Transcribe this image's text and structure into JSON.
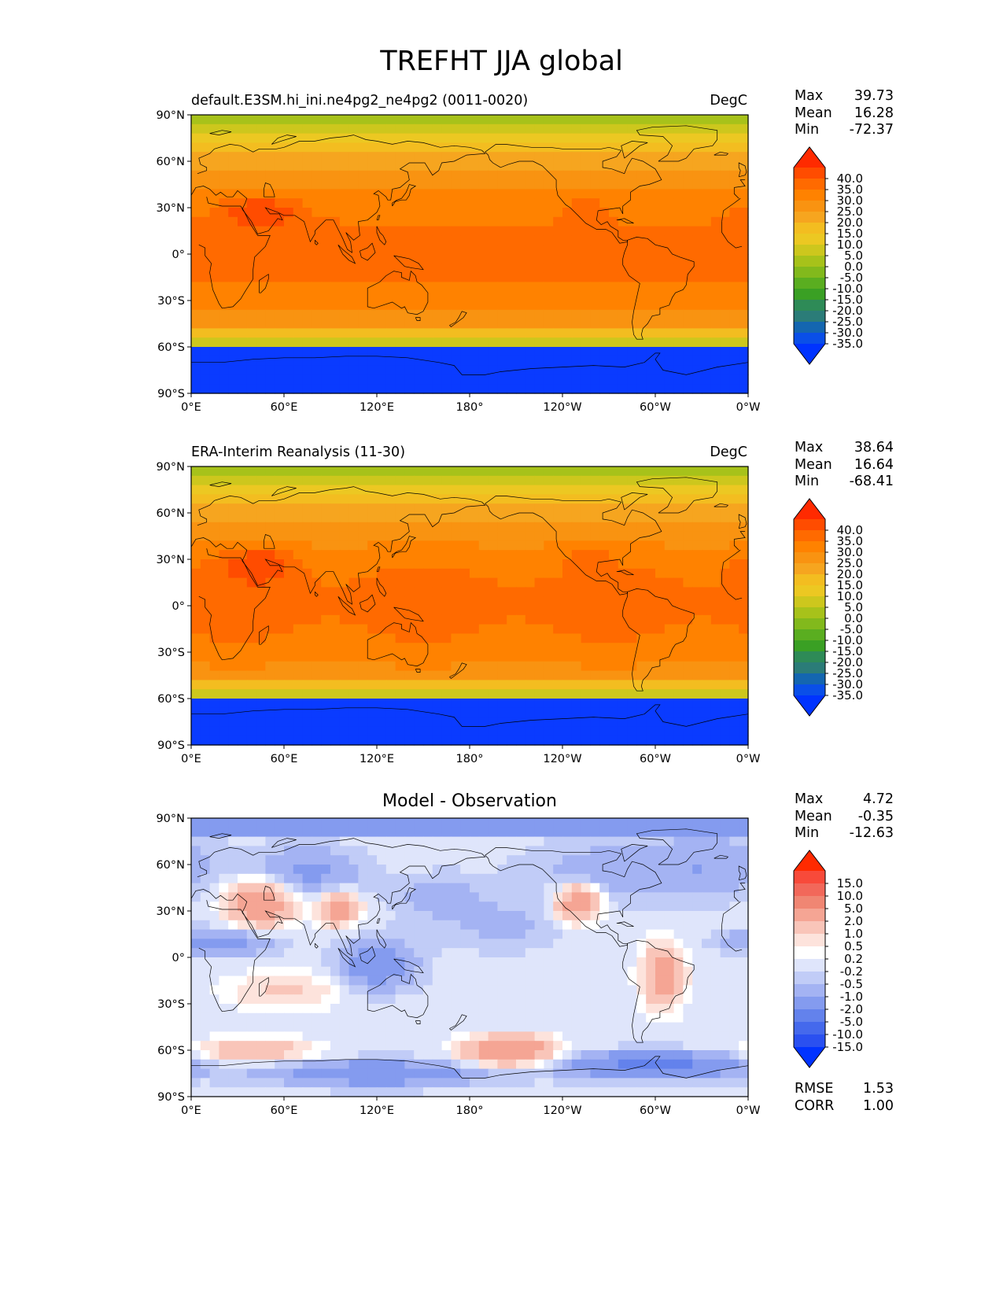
{
  "figure": {
    "title": "TREFHT JJA global",
    "panels": [
      {
        "title": "default.E3SM.hi_ini.ne4pg2_ne4pg2 (0011-0020)",
        "units": "DegC",
        "stats": [
          {
            "label": "Max",
            "value": "39.73"
          },
          {
            "label": "Mean",
            "value": "16.28"
          },
          {
            "label": "Min",
            "value": "-72.37"
          }
        ],
        "colorbar": "abs"
      },
      {
        "title": "ERA-Interim Reanalysis (11-30)",
        "units": "DegC",
        "stats": [
          {
            "label": "Max",
            "value": "38.64"
          },
          {
            "label": "Mean",
            "value": "16.64"
          },
          {
            "label": "Min",
            "value": "-68.41"
          }
        ],
        "colorbar": "abs"
      },
      {
        "title": "Model - Observation",
        "units": "",
        "stats": [
          {
            "label": "Max",
            "value": "4.72"
          },
          {
            "label": "Mean",
            "value": "-0.35"
          },
          {
            "label": "Min",
            "value": "-12.63"
          }
        ],
        "extra_stats": [
          {
            "label": "RMSE",
            "value": "1.53"
          },
          {
            "label": "CORR",
            "value": "1.00"
          }
        ],
        "colorbar": "diff"
      }
    ],
    "axes": {
      "lat_ticks": [
        "90°N",
        "60°N",
        "30°N",
        "0°",
        "30°S",
        "60°S",
        "90°S"
      ],
      "lon_ticks": [
        "0°E",
        "60°E",
        "120°E",
        "180°",
        "120°W",
        "60°W",
        "0°W"
      ]
    },
    "colorbars": {
      "abs": {
        "labels": [
          "40.0",
          "35.0",
          "30.0",
          "25.0",
          "20.0",
          "15.0",
          "10.0",
          "5.0",
          "0.0",
          "-5.0",
          "-10.0",
          "-15.0",
          "-20.0",
          "-25.0",
          "-30.0",
          "-35.0"
        ],
        "colors": [
          "#ff2a00",
          "#ff4c00",
          "#ff6a00",
          "#ff8200",
          "#f99311",
          "#f6a51f",
          "#f3bd20",
          "#ecc822",
          "#cdc71d",
          "#a7c21a",
          "#82b91c",
          "#5aae20",
          "#3aa024",
          "#2e8b57",
          "#2b7c78",
          "#1466b0",
          "#0a4fe8",
          "#0033ff"
        ]
      },
      "diff": {
        "labels": [
          "15.0",
          "10.0",
          "5.0",
          "2.0",
          "1.0",
          "0.5",
          "0.2",
          "-0.2",
          "-0.5",
          "-1.0",
          "-2.0",
          "-5.0",
          "-10.0",
          "-15.0"
        ],
        "colors": [
          "#ff2a00",
          "#f84a3a",
          "#f2685a",
          "#f08673",
          "#f5a594",
          "#f9c5b9",
          "#fde3dc",
          "#ffffff",
          "#dfe5fb",
          "#c1ccf7",
          "#a4b3f3",
          "#849bef",
          "#6382ec",
          "#4569ec",
          "#2a50f0",
          "#0033ff"
        ]
      }
    },
    "field_palettes": {
      "abs": [
        "#0a3bff",
        "#1466b0",
        "#2e8b57",
        "#3aa024",
        "#5aae20",
        "#82b91c",
        "#a7c21a",
        "#cdc71d",
        "#ecc822",
        "#f3bd20",
        "#f6a51f",
        "#f99311",
        "#ff8200",
        "#ff6a00",
        "#ff4c00"
      ],
      "diff": [
        "#2a50f0",
        "#6382ec",
        "#849bef",
        "#a4b3f3",
        "#c1ccf7",
        "#dfe5fb",
        "#ffffff",
        "#fde3dc",
        "#f9c5b9",
        "#f5a594",
        "#f2685a"
      ]
    }
  }
}
